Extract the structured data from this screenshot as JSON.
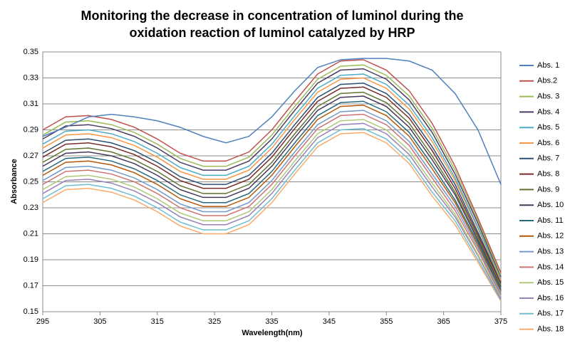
{
  "chart_data": {
    "type": "line",
    "title": "Monitoring the decrease in concentration of luminol during the oxidation reaction of luminol catalyzed by HRP",
    "x_label": "Wavelength(nm)",
    "y_label": "Absorbance",
    "x": [
      295,
      299,
      303,
      307,
      311,
      315,
      319,
      323,
      327,
      331,
      335,
      339,
      343,
      347,
      351,
      355,
      359,
      363,
      367,
      371,
      375
    ],
    "xlim": [
      295,
      375
    ],
    "xticks": [
      295,
      305,
      315,
      325,
      335,
      345,
      355,
      365,
      375
    ],
    "ylim": [
      0.15,
      0.35
    ],
    "yticks": [
      0.15,
      0.17,
      0.19,
      0.21,
      0.23,
      0.25,
      0.27,
      0.29,
      0.31,
      0.33,
      0.35
    ],
    "grid": true,
    "legend": "right",
    "series": [
      {
        "name": "Abs. 1",
        "color": "#4F81BD",
        "values": [
          0.285,
          0.292,
          0.3,
          0.302,
          0.3,
          0.297,
          0.292,
          0.285,
          0.28,
          0.285,
          0.3,
          0.32,
          0.338,
          0.344,
          0.345,
          0.345,
          0.343,
          0.336,
          0.318,
          0.29,
          0.248
        ]
      },
      {
        "name": "Abs.2",
        "color": "#C0504D",
        "values": [
          0.29,
          0.3,
          0.301,
          0.298,
          0.292,
          0.283,
          0.272,
          0.266,
          0.266,
          0.273,
          0.29,
          0.312,
          0.333,
          0.343,
          0.344,
          0.336,
          0.32,
          0.295,
          0.262,
          0.222,
          0.18
        ]
      },
      {
        "name": "Abs. 3",
        "color": "#9BBB59",
        "values": [
          0.286,
          0.296,
          0.297,
          0.294,
          0.288,
          0.279,
          0.268,
          0.262,
          0.262,
          0.269,
          0.286,
          0.308,
          0.329,
          0.339,
          0.34,
          0.332,
          0.316,
          0.291,
          0.259,
          0.22,
          0.178
        ]
      },
      {
        "name": "Abs. 4",
        "color": "#4D3B62",
        "values": [
          0.283,
          0.293,
          0.294,
          0.291,
          0.285,
          0.276,
          0.265,
          0.259,
          0.259,
          0.266,
          0.283,
          0.305,
          0.326,
          0.336,
          0.337,
          0.329,
          0.313,
          0.288,
          0.256,
          0.218,
          0.177
        ]
      },
      {
        "name": "Abs. 5",
        "color": "#4BACC6",
        "values": [
          0.279,
          0.289,
          0.29,
          0.287,
          0.281,
          0.272,
          0.261,
          0.255,
          0.255,
          0.262,
          0.279,
          0.301,
          0.322,
          0.332,
          0.333,
          0.325,
          0.309,
          0.284,
          0.253,
          0.215,
          0.176
        ]
      },
      {
        "name": "Abs. 6",
        "color": "#F79646",
        "values": [
          0.276,
          0.286,
          0.287,
          0.284,
          0.278,
          0.269,
          0.258,
          0.252,
          0.252,
          0.259,
          0.276,
          0.298,
          0.319,
          0.329,
          0.33,
          0.322,
          0.306,
          0.281,
          0.251,
          0.214,
          0.174
        ]
      },
      {
        "name": "Abs. 7",
        "color": "#2C4D75",
        "values": [
          0.272,
          0.282,
          0.283,
          0.28,
          0.274,
          0.265,
          0.254,
          0.248,
          0.248,
          0.255,
          0.272,
          0.294,
          0.315,
          0.325,
          0.326,
          0.318,
          0.302,
          0.277,
          0.248,
          0.211,
          0.173
        ]
      },
      {
        "name": "Abs. 8",
        "color": "#772C2A",
        "values": [
          0.269,
          0.279,
          0.28,
          0.277,
          0.271,
          0.262,
          0.251,
          0.245,
          0.245,
          0.252,
          0.269,
          0.291,
          0.312,
          0.322,
          0.323,
          0.315,
          0.299,
          0.274,
          0.245,
          0.209,
          0.172
        ]
      },
      {
        "name": "Abs. 9",
        "color": "#5F7530",
        "values": [
          0.265,
          0.275,
          0.276,
          0.273,
          0.267,
          0.258,
          0.247,
          0.241,
          0.241,
          0.248,
          0.265,
          0.287,
          0.308,
          0.318,
          0.319,
          0.311,
          0.295,
          0.27,
          0.242,
          0.207,
          0.17
        ]
      },
      {
        "name": "Abs. 10",
        "color": "#46385A",
        "values": [
          0.262,
          0.272,
          0.273,
          0.27,
          0.264,
          0.255,
          0.244,
          0.238,
          0.238,
          0.245,
          0.262,
          0.284,
          0.305,
          0.315,
          0.316,
          0.308,
          0.292,
          0.267,
          0.24,
          0.205,
          0.169
        ]
      },
      {
        "name": "Abs. 11",
        "color": "#276A7C",
        "values": [
          0.258,
          0.268,
          0.269,
          0.266,
          0.26,
          0.251,
          0.24,
          0.234,
          0.234,
          0.241,
          0.258,
          0.28,
          0.301,
          0.311,
          0.312,
          0.304,
          0.288,
          0.263,
          0.236,
          0.203,
          0.167
        ]
      },
      {
        "name": "Abs. 12",
        "color": "#B65708",
        "values": [
          0.255,
          0.265,
          0.266,
          0.263,
          0.257,
          0.248,
          0.237,
          0.231,
          0.231,
          0.238,
          0.255,
          0.277,
          0.298,
          0.308,
          0.309,
          0.301,
          0.285,
          0.26,
          0.234,
          0.201,
          0.166
        ]
      },
      {
        "name": "Abs. 13",
        "color": "#729ACA",
        "values": [
          0.251,
          0.261,
          0.262,
          0.259,
          0.253,
          0.244,
          0.233,
          0.227,
          0.227,
          0.234,
          0.251,
          0.273,
          0.294,
          0.304,
          0.305,
          0.297,
          0.281,
          0.256,
          0.231,
          0.199,
          0.164
        ]
      },
      {
        "name": "Abs. 14",
        "color": "#CD7371",
        "values": [
          0.248,
          0.258,
          0.259,
          0.256,
          0.25,
          0.241,
          0.23,
          0.224,
          0.224,
          0.231,
          0.248,
          0.27,
          0.291,
          0.301,
          0.302,
          0.294,
          0.278,
          0.253,
          0.228,
          0.197,
          0.163
        ]
      },
      {
        "name": "Abs. 15",
        "color": "#AFC97A",
        "values": [
          0.244,
          0.254,
          0.255,
          0.252,
          0.246,
          0.237,
          0.226,
          0.22,
          0.22,
          0.227,
          0.244,
          0.266,
          0.287,
          0.297,
          0.298,
          0.29,
          0.274,
          0.249,
          0.225,
          0.194,
          0.162
        ]
      },
      {
        "name": "Abs. 16",
        "color": "#9983B5",
        "values": [
          0.241,
          0.251,
          0.252,
          0.249,
          0.243,
          0.234,
          0.223,
          0.217,
          0.217,
          0.224,
          0.241,
          0.263,
          0.284,
          0.294,
          0.295,
          0.287,
          0.271,
          0.246,
          0.223,
          0.193,
          0.16
        ]
      },
      {
        "name": "Abs. 17",
        "color": "#6FBDD1",
        "values": [
          0.237,
          0.247,
          0.248,
          0.245,
          0.239,
          0.23,
          0.219,
          0.213,
          0.213,
          0.22,
          0.237,
          0.259,
          0.28,
          0.29,
          0.291,
          0.283,
          0.267,
          0.242,
          0.22,
          0.19,
          0.159
        ]
      },
      {
        "name": "Abs. 18",
        "color": "#F9AB6B",
        "values": [
          0.234,
          0.244,
          0.245,
          0.242,
          0.236,
          0.227,
          0.216,
          0.21,
          0.21,
          0.217,
          0.234,
          0.256,
          0.277,
          0.287,
          0.288,
          0.28,
          0.264,
          0.239,
          0.217,
          0.188,
          0.158
        ]
      }
    ]
  }
}
